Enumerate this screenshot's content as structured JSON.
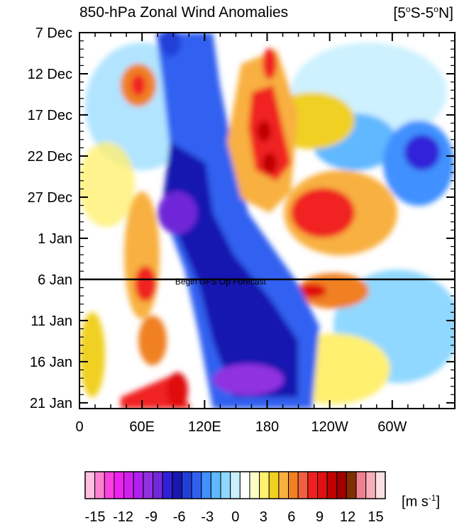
{
  "figure": {
    "title": "850-hPa Zonal Wind Anomalies",
    "region": {
      "lat_a": "5",
      "lat_a_hemi": "S",
      "lat_b": "5",
      "lat_b_hemi": "N",
      "deg": "o"
    },
    "units": {
      "base": "m s",
      "exp": "-1"
    }
  },
  "chart_data": {
    "type": "heatmap",
    "title": "850-hPa Zonal Wind Anomalies",
    "subtitle": "[5°S-5°N]",
    "xlabel": "",
    "ylabel": "",
    "x_ticks": [
      {
        "label": "0",
        "lon": 0
      },
      {
        "label": "60E",
        "lon": 60
      },
      {
        "label": "120E",
        "lon": 120
      },
      {
        "label": "180",
        "lon": 180
      },
      {
        "label": "120W",
        "lon": 240
      },
      {
        "label": "60W",
        "lon": 300
      }
    ],
    "xlim": [
      0,
      360
    ],
    "y_ticks": [
      "7 Dec",
      "12 Dec",
      "17 Dec",
      "22 Dec",
      "27 Dec",
      "1 Jan",
      "6 Jan",
      "11 Jan",
      "16 Jan",
      "21 Jan"
    ],
    "ylim_days": [
      "7 Dec",
      "23 Jan"
    ],
    "forecast_line": {
      "date": "6 Jan",
      "label": "Begin GFS Op Forecast"
    },
    "colorbar": {
      "units": "m s-1",
      "tick_labels": [
        "-15",
        "-12",
        "-9",
        "-6",
        "-3",
        "0",
        "3",
        "6",
        "9",
        "12",
        "15"
      ],
      "colors": [
        "#ffbfe0",
        "#ff80d0",
        "#ff40e0",
        "#f020f0",
        "#d020f0",
        "#b020f0",
        "#9030e0",
        "#7028d8",
        "#3020d8",
        "#1818b0",
        "#2040d8",
        "#3060f0",
        "#4090ff",
        "#60b8ff",
        "#90d8ff",
        "#c8f0ff",
        "#ffffff",
        "#fffcc8",
        "#fff070",
        "#f0d020",
        "#f8b040",
        "#f08020",
        "#f06040",
        "#f02020",
        "#e01010",
        "#c00000",
        "#a00000",
        "#803000",
        "#f08090",
        "#f8b0b8",
        "#fce0e4"
      ]
    },
    "grid": false,
    "legend_position": "bottom"
  }
}
